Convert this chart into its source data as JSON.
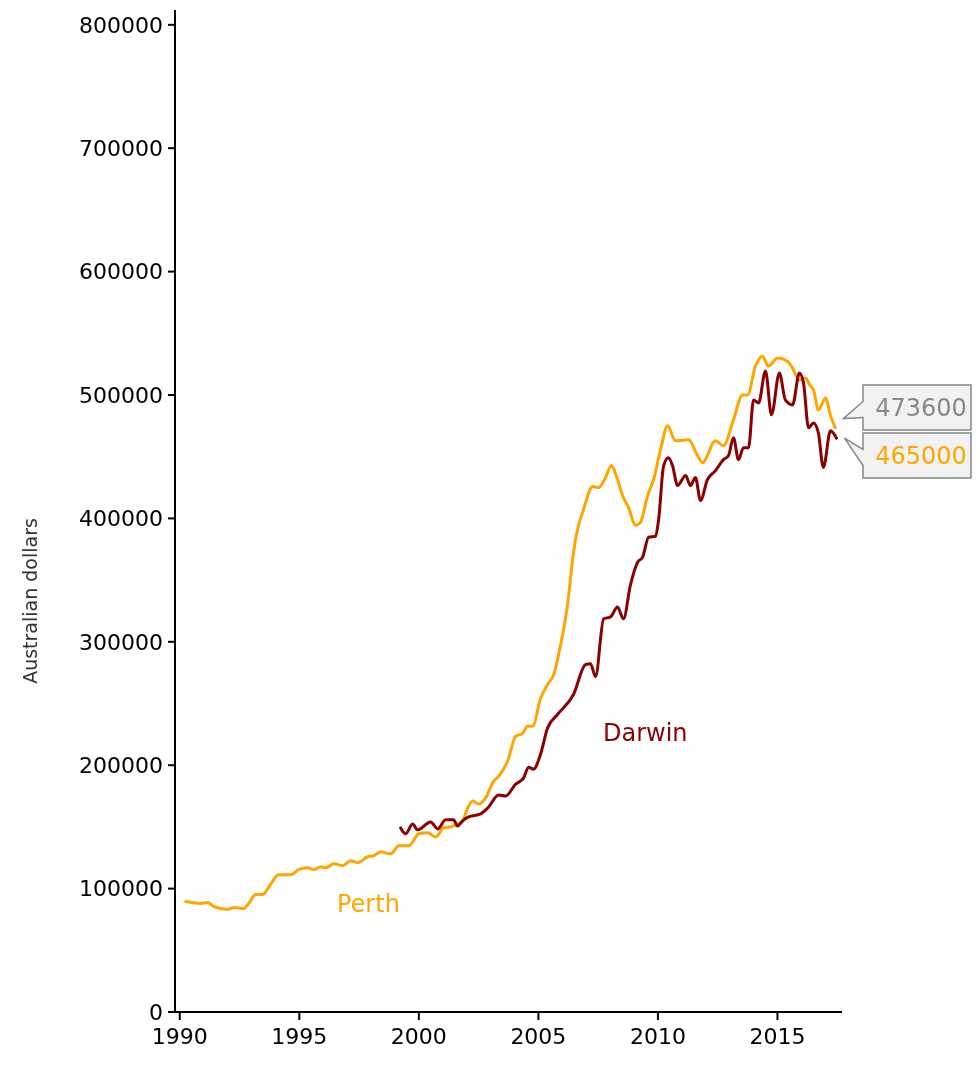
{
  "chart_data": {
    "type": "line",
    "ylabel": "Australian dollars",
    "xlim": [
      1989.8,
      2017.7
    ],
    "ylim": [
      0,
      812000
    ],
    "xticks": [
      1990,
      1995,
      2000,
      2005,
      2010,
      2015
    ],
    "yticks": [
      0,
      100000,
      200000,
      300000,
      400000,
      500000,
      600000,
      700000,
      800000
    ],
    "grid": false,
    "legend": false,
    "marker": "none",
    "line_style": "solid",
    "series": [
      {
        "name": "Perth",
        "color": "#ffa500",
        "x": [
          1990.25,
          1990.88,
          1991.17,
          1991.42,
          1992.01,
          1992.26,
          1992.68,
          1992.88,
          1993.18,
          1993.47,
          1993.68,
          1994.14,
          1994.64,
          1994.97,
          1995.35,
          1995.6,
          1995.9,
          1996.11,
          1996.44,
          1996.81,
          1997.15,
          1997.44,
          1997.86,
          1998.11,
          1998.4,
          1998.82,
          1999.16,
          1999.58,
          2000.0,
          2000.37,
          2000.7,
          2001.04,
          2001.46,
          2001.83,
          2002.04,
          2002.25,
          2002.5,
          2002.79,
          2003.13,
          2003.34,
          2003.71,
          2004.05,
          2004.34,
          2004.55,
          2004.76,
          2005.09,
          2005.38,
          2005.64,
          2005.93,
          2006.22,
          2006.47,
          2006.64,
          2006.89,
          2007.27,
          2007.52,
          2007.77,
          2008.06,
          2008.31,
          2008.52,
          2008.77,
          2009.06,
          2009.27,
          2009.57,
          2009.82,
          2010.11,
          2010.4,
          2010.74,
          2011.28,
          2011.66,
          2011.86,
          2012.41,
          2012.74,
          2013.16,
          2013.54,
          2013.75,
          2014.08,
          2014.37,
          2014.62,
          2015.0,
          2015.42,
          2015.63,
          2015.92,
          2016.17,
          2016.38,
          2016.51,
          2016.71,
          2017.01,
          2017.22,
          2017.42
        ],
        "values": [
          89500,
          88000,
          88700,
          85500,
          83100,
          84700,
          83900,
          87900,
          95200,
          95200,
          100000,
          111300,
          111300,
          115300,
          116900,
          115300,
          117700,
          116900,
          120200,
          118600,
          122600,
          121000,
          125800,
          126600,
          129800,
          128200,
          134700,
          134700,
          144400,
          145200,
          141900,
          149200,
          150800,
          154800,
          165300,
          171000,
          168600,
          173400,
          187100,
          191100,
          203200,
          223400,
          225800,
          231500,
          231500,
          254000,
          265300,
          273400,
          297600,
          329900,
          372600,
          391200,
          407300,
          425800,
          425000,
          431500,
          442800,
          431500,
          418600,
          408900,
          394400,
          396800,
          418600,
          431500,
          455700,
          475000,
          462900,
          463700,
          450800,
          445200,
          462900,
          458900,
          479900,
          500000,
          500000,
          523400,
          531500,
          523400,
          529900,
          527400,
          521800,
          512100,
          513700,
          507300,
          504100,
          487900,
          497600,
          483100,
          473600
        ]
      },
      {
        "name": "Darwin",
        "color": "#8b0000",
        "x": [
          1999.24,
          1999.45,
          1999.74,
          1999.95,
          2000.49,
          2000.79,
          2001.12,
          2001.45,
          2001.62,
          2001.83,
          2002.08,
          2002.58,
          2002.88,
          2003.34,
          2003.63,
          2004.05,
          2004.38,
          2004.59,
          2004.8,
          2005.09,
          2005.38,
          2005.8,
          2006.47,
          2006.97,
          2007.18,
          2007.39,
          2007.73,
          2008.02,
          2008.31,
          2008.56,
          2008.85,
          2009.15,
          2009.36,
          2009.61,
          2009.9,
          2010.03,
          2010.24,
          2010.44,
          2010.61,
          2010.82,
          2011.16,
          2011.36,
          2011.57,
          2011.78,
          2012.07,
          2012.41,
          2012.74,
          2012.95,
          2013.16,
          2013.37,
          2013.58,
          2013.79,
          2014.0,
          2014.21,
          2014.5,
          2014.75,
          2015.08,
          2015.33,
          2015.63,
          2015.92,
          2016.09,
          2016.3,
          2016.51,
          2016.71,
          2016.92,
          2017.22,
          2017.47
        ],
        "values": [
          149200,
          144400,
          152400,
          147600,
          154000,
          148400,
          155700,
          155700,
          150800,
          154800,
          158100,
          160500,
          165300,
          175800,
          175000,
          184700,
          189500,
          198400,
          196800,
          208900,
          229900,
          241100,
          257300,
          281500,
          282300,
          271800,
          318600,
          320200,
          328200,
          318600,
          346000,
          364500,
          368600,
          384700,
          385500,
          399200,
          442800,
          449200,
          442800,
          426600,
          434700,
          426600,
          433100,
          414500,
          431500,
          438700,
          447600,
          450800,
          465300,
          447600,
          457300,
          457300,
          496000,
          493600,
          519400,
          483900,
          517800,
          496000,
          492000,
          517800,
          509700,
          473400,
          477400,
          469400,
          441200,
          471000,
          465000
        ]
      }
    ],
    "annotations": [
      {
        "text": "473600",
        "x": 2017.42,
        "y": 473600
      },
      {
        "text": "465000",
        "x": 2017.47,
        "y": 465000
      }
    ]
  }
}
